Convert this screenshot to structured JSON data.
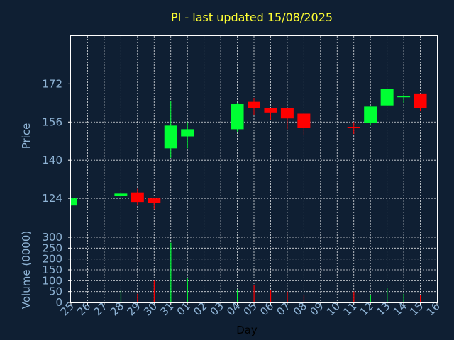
{
  "title": "PI - last updated 15/08/2025",
  "colors": {
    "background": "#0f1f33",
    "up": "#00ff33",
    "down": "#ff0000",
    "title": "#ffff33",
    "axis_text": "#8fb4d6"
  },
  "chart_data": [
    {
      "type": "candlestick",
      "title": "PI - last updated 15/08/2025",
      "ylabel": "Price",
      "ylim": [
        108,
        192
      ],
      "yticks": [
        124,
        140,
        156,
        172
      ],
      "grid": true,
      "categories": [
        "25",
        "26",
        "27",
        "28",
        "29",
        "30",
        "31",
        "01",
        "02",
        "03",
        "04",
        "05",
        "06",
        "07",
        "08",
        "09",
        "10",
        "11",
        "12",
        "13",
        "14",
        "15",
        "16"
      ],
      "candles": [
        {
          "day": "25",
          "open": 121,
          "high": 124,
          "low": 121,
          "close": 124
        },
        {
          "day": "28",
          "open": 125,
          "high": 126.5,
          "low": 124,
          "close": 126
        },
        {
          "day": "29",
          "open": 126.5,
          "high": 128,
          "low": 121,
          "close": 122.5
        },
        {
          "day": "30",
          "open": 124,
          "high": 124,
          "low": 119.5,
          "close": 122
        },
        {
          "day": "31",
          "open": 145,
          "high": 165,
          "low": 141,
          "close": 154.5
        },
        {
          "day": "01",
          "open": 150,
          "high": 156,
          "low": 145,
          "close": 153
        },
        {
          "day": "04",
          "open": 153,
          "high": 164,
          "low": 152,
          "close": 163.5
        },
        {
          "day": "05",
          "open": 164.5,
          "high": 166,
          "low": 159,
          "close": 162
        },
        {
          "day": "06",
          "open": 162,
          "high": 162,
          "low": 157,
          "close": 160
        },
        {
          "day": "07",
          "open": 162,
          "high": 162,
          "low": 153,
          "close": 157.5
        },
        {
          "day": "08",
          "open": 159.5,
          "high": 159.5,
          "low": 150.5,
          "close": 153.5
        },
        {
          "day": "11",
          "open": 154,
          "high": 156,
          "low": 151,
          "close": 153.5
        },
        {
          "day": "12",
          "open": 155.5,
          "high": 162.5,
          "low": 154.5,
          "close": 162.5
        },
        {
          "day": "13",
          "open": 163,
          "high": 170,
          "low": 163,
          "close": 170
        },
        {
          "day": "14",
          "open": 166.5,
          "high": 167.5,
          "low": 164,
          "close": 167
        },
        {
          "day": "15",
          "open": 168,
          "high": 168,
          "low": 160.5,
          "close": 162
        }
      ]
    },
    {
      "type": "bar",
      "xlabel": "Day",
      "ylabel": "Volume (0000)",
      "ylim": [
        0,
        300
      ],
      "yticks": [
        0,
        50,
        100,
        150,
        200,
        250,
        300
      ],
      "grid": true,
      "bars": [
        {
          "day": "25",
          "value": 2,
          "dir": "up"
        },
        {
          "day": "28",
          "value": 55,
          "dir": "up"
        },
        {
          "day": "29",
          "value": 40,
          "dir": "down"
        },
        {
          "day": "30",
          "value": 100,
          "dir": "down"
        },
        {
          "day": "31",
          "value": 275,
          "dir": "up"
        },
        {
          "day": "01",
          "value": 110,
          "dir": "up"
        },
        {
          "day": "04",
          "value": 60,
          "dir": "up"
        },
        {
          "day": "05",
          "value": 80,
          "dir": "down"
        },
        {
          "day": "06",
          "value": 55,
          "dir": "down"
        },
        {
          "day": "07",
          "value": 50,
          "dir": "down"
        },
        {
          "day": "08",
          "value": 35,
          "dir": "down"
        },
        {
          "day": "11",
          "value": 50,
          "dir": "down"
        },
        {
          "day": "12",
          "value": 35,
          "dir": "up"
        },
        {
          "day": "13",
          "value": 65,
          "dir": "up"
        },
        {
          "day": "14",
          "value": 40,
          "dir": "up"
        },
        {
          "day": "15",
          "value": 35,
          "dir": "down"
        }
      ]
    }
  ]
}
